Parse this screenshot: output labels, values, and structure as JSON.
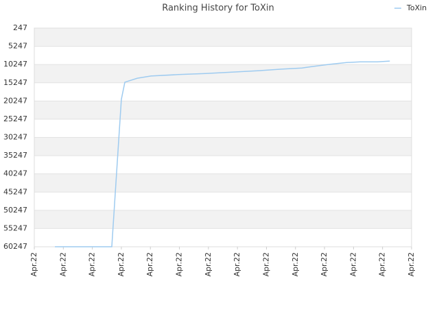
{
  "chart_data": {
    "type": "line",
    "title": "Ranking History for ToXin",
    "series": [
      {
        "name": "ToXin",
        "color": "#9ecbf0",
        "x": [
          0.71,
          2.67,
          3.0,
          3.12,
          3.55,
          4.02,
          4.96,
          5.91,
          6.86,
          7.8,
          8.51,
          9.22,
          9.57,
          10.17,
          10.76,
          11.23,
          11.82,
          12.25
        ],
        "values": [
          60247,
          60247,
          19800,
          15100,
          14000,
          13400,
          13000,
          12700,
          12300,
          11900,
          11500,
          11200,
          10800,
          10200,
          9700,
          9500,
          9500,
          9300
        ]
      }
    ],
    "xlim": [
      0,
      13
    ],
    "xticks": [
      {
        "value": 0,
        "label": "Apr.22"
      },
      {
        "value": 1,
        "label": "Apr.22"
      },
      {
        "value": 2,
        "label": "Apr.22"
      },
      {
        "value": 3,
        "label": "Apr.22"
      },
      {
        "value": 4,
        "label": "Apr.22"
      },
      {
        "value": 5,
        "label": "Apr.22"
      },
      {
        "value": 6,
        "label": "Apr.22"
      },
      {
        "value": 7,
        "label": "Apr.22"
      },
      {
        "value": 8,
        "label": "Apr.22"
      },
      {
        "value": 9,
        "label": "Apr.22"
      },
      {
        "value": 10,
        "label": "Apr.22"
      },
      {
        "value": 11,
        "label": "Apr.22"
      },
      {
        "value": 12,
        "label": "Apr.22"
      },
      {
        "value": 13,
        "label": "Apr.22"
      }
    ],
    "ylim": [
      60247,
      247
    ],
    "yticks": [
      247,
      5247,
      10247,
      15247,
      20247,
      25247,
      30247,
      35247,
      40247,
      45247,
      50247,
      55247,
      60247
    ],
    "grid": true,
    "legend": "top-right"
  }
}
